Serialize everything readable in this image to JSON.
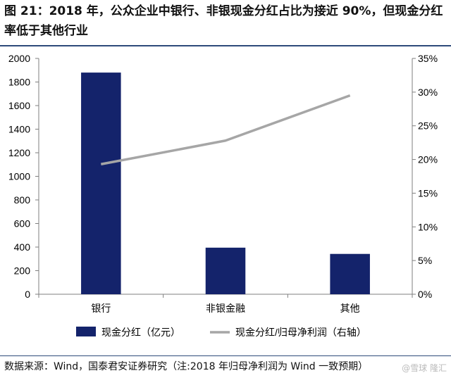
{
  "header": {
    "title": "图 21：2018 年，公众企业中银行、非银现金分红占比为接近 90%，但现金分红率低于其他行业"
  },
  "footer": {
    "source": "数据来源：Wind，国泰君安证券研究（注:2018 年归母净利润为 Wind 一致预期）",
    "watermark": "@雪球 隆汇"
  },
  "chart_data": {
    "type": "bar",
    "categories": [
      "银行",
      "非银金融",
      "其他"
    ],
    "series": [
      {
        "name": "现金分红（亿元）",
        "kind": "bar",
        "axis": "left",
        "color": "#14236b",
        "values": [
          1880,
          395,
          342
        ]
      },
      {
        "name": "现金分红/归母净利润（右轴）",
        "kind": "line",
        "axis": "right",
        "color": "#a6a6a6",
        "values": [
          0.193,
          0.228,
          0.295
        ]
      }
    ],
    "y_left": {
      "min": 0,
      "max": 2000,
      "step": 200,
      "ticks": [
        "0",
        "200",
        "400",
        "600",
        "800",
        "1000",
        "1200",
        "1400",
        "1600",
        "1800",
        "2000"
      ]
    },
    "y_right": {
      "min": 0,
      "max": 0.35,
      "step": 0.05,
      "ticks": [
        "0%",
        "5%",
        "10%",
        "15%",
        "20%",
        "25%",
        "30%",
        "35%"
      ]
    },
    "grid": false,
    "legend_position": "bottom"
  }
}
